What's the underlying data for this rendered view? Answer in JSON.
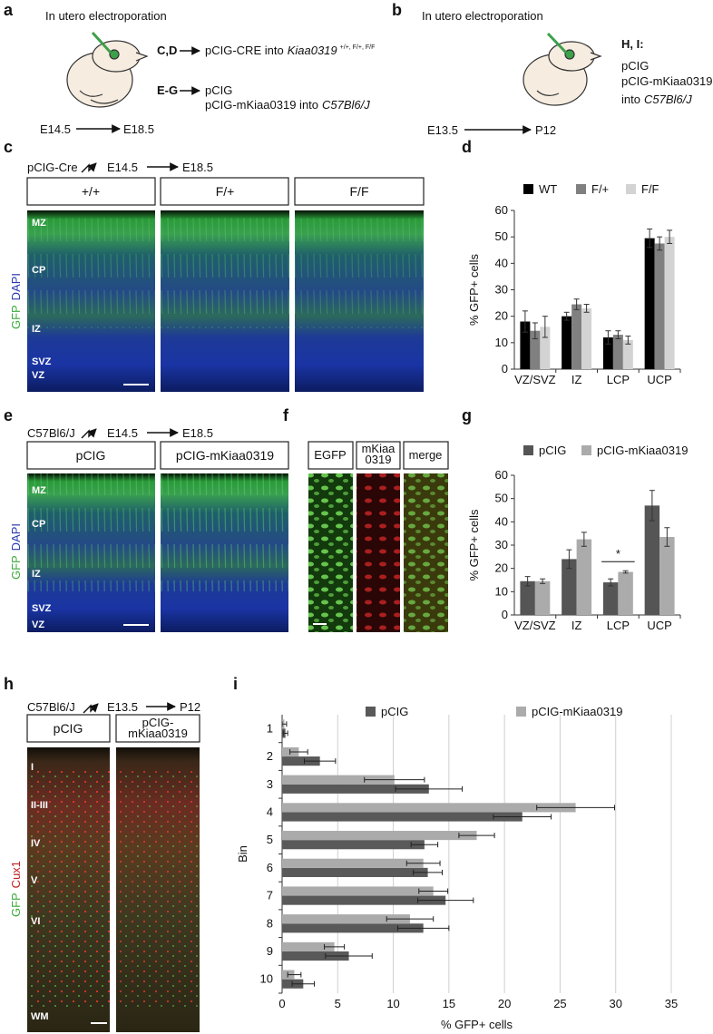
{
  "panels": {
    "a": {
      "label": "a",
      "title": "In utero electroporation",
      "cd_key": "C,D",
      "cd_text": "pCIG-CRE into",
      "cd_gene": "Kiaa0319",
      "cd_genotypes": "+/+, F/+, F/F",
      "eg_key": "E-G",
      "eg_line1": "pCIG",
      "eg_line2": "pCIG-mKiaa0319 into",
      "eg_strain": "C57Bl6/J",
      "start": "E14.5",
      "end": "E18.5"
    },
    "b": {
      "label": "b",
      "title": "In utero electroporation",
      "key": "H, I:",
      "line1": "pCIG",
      "line2": "pCIG-mKiaa0319",
      "into": "into",
      "strain": "C57Bl6/J",
      "start": "E13.5",
      "end": "P12"
    },
    "c": {
      "label": "c",
      "construct": "pCIG-Cre",
      "start": "E14.5",
      "end": "E18.5",
      "conditions": [
        "+/+",
        "F/+",
        "F/F"
      ],
      "layers": [
        "MZ",
        "CP",
        "IZ",
        "SVZ",
        "VZ"
      ],
      "stain_green": "GFP",
      "stain_other": "DAPI"
    },
    "d": {
      "label": "d"
    },
    "e": {
      "label": "e",
      "construct": "C57Bl6/J",
      "start": "E14.5",
      "end": "E18.5",
      "conditions": [
        "pCIG",
        "pCIG-mKiaa0319"
      ],
      "layers": [
        "MZ",
        "CP",
        "IZ",
        "SVZ",
        "VZ"
      ],
      "stain_green": "GFP",
      "stain_other": "DAPI"
    },
    "f": {
      "label": "f",
      "channel_egfp": "EGFP",
      "channel_mkiaa": [
        "mKiaa",
        "0319"
      ],
      "channel_merge": "merge"
    },
    "g": {
      "label": "g"
    },
    "h": {
      "label": "h",
      "construct": "C57Bl6/J",
      "start": "E13.5",
      "end": "P12",
      "condition_1": "pCIG",
      "condition_2": [
        "pCIG-",
        "mKiaa0319"
      ],
      "layers": [
        "I",
        "II-III",
        "IV",
        "V",
        "VI",
        "WM"
      ],
      "stain_green": "GFP",
      "stain_other": "Cux1"
    },
    "i": {
      "label": "i"
    }
  },
  "chart_data": [
    {
      "type": "bar",
      "y_label": "% GFP+ cells",
      "categories": [
        "VZ/SVZ",
        "IZ",
        "LCP",
        "UCP"
      ],
      "series": [
        {
          "name": "WT",
          "color": "#000000",
          "values": [
            18,
            20,
            12,
            49.5
          ],
          "errors": [
            4,
            1.5,
            2.5,
            3.5
          ]
        },
        {
          "name": "F/+",
          "color": "#808080",
          "values": [
            14.5,
            24.5,
            13,
            47.5
          ],
          "errors": [
            3,
            2,
            1.5,
            2.5
          ]
        },
        {
          "name": "F/F",
          "color": "#d3d3d3",
          "values": [
            16,
            23,
            11,
            50
          ],
          "errors": [
            4,
            1.5,
            1.5,
            2.5
          ]
        }
      ],
      "ylim": [
        0,
        60
      ],
      "yticks": [
        0,
        10,
        20,
        30,
        40,
        50,
        60
      ],
      "legend": "top"
    },
    {
      "type": "bar",
      "y_label": "% GFP+ cells",
      "categories": [
        "VZ/SVZ",
        "IZ",
        "LCP",
        "UCP"
      ],
      "series": [
        {
          "name": "pCIG",
          "color": "#555555",
          "values": [
            14.5,
            24,
            14,
            47
          ],
          "errors": [
            2,
            4,
            1.5,
            6.5
          ]
        },
        {
          "name": "pCIG-mKiaa0319",
          "color": "#ababab",
          "values": [
            14.5,
            32.5,
            18.5,
            33.5
          ],
          "errors": [
            1,
            3,
            0.5,
            4
          ]
        }
      ],
      "significance": {
        "text": "*",
        "category": "LCP"
      },
      "ylim": [
        0,
        60
      ],
      "yticks": [
        0,
        10,
        20,
        30,
        40,
        50,
        60
      ],
      "legend": "top"
    },
    {
      "type": "hbar",
      "x_label": "% GFP+ cells",
      "y_label": "Bin",
      "categories": [
        "1",
        "2",
        "3",
        "4",
        "5",
        "6",
        "7",
        "8",
        "9",
        "10"
      ],
      "series": [
        {
          "name": "pCIG",
          "color": "#595959",
          "values": [
            0.3,
            3.4,
            13.2,
            21.6,
            12.8,
            13.1,
            14.7,
            12.7,
            6.0,
            1.9
          ],
          "errors": [
            0.2,
            1.4,
            3,
            2.6,
            1.2,
            1.3,
            2.5,
            2.3,
            2.1,
            1
          ]
        },
        {
          "name": "pCIG-mKiaa0319",
          "color": "#ababab",
          "values": [
            0.2,
            1.5,
            10.1,
            26.4,
            17.5,
            12.7,
            13.6,
            11.5,
            4.7,
            1.1
          ],
          "errors": [
            0.2,
            0.8,
            2.7,
            3.5,
            1.6,
            1.5,
            1.3,
            2.1,
            0.9,
            0.6
          ]
        }
      ],
      "xlim": [
        0,
        35
      ],
      "xticks": [
        0,
        5,
        10,
        15,
        20,
        25,
        30,
        35
      ],
      "grid": true,
      "legend": "top"
    }
  ]
}
